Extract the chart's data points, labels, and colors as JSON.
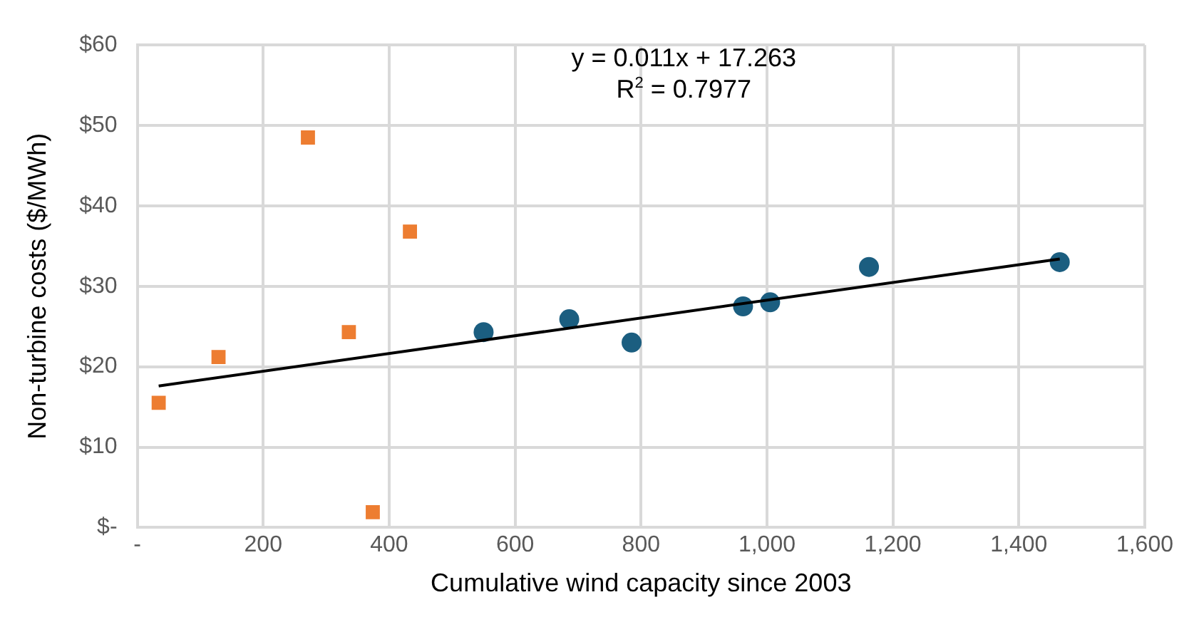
{
  "chart_data": {
    "type": "scatter",
    "xlabel": "Cumulative wind capacity since 2003",
    "ylabel": "Non-turbine costs ($/MWh)",
    "annotations": [
      "y = 0.011x + 17.263",
      "R$^{2}$ = 0.7977"
    ],
    "series": [
      {
        "marker": "square",
        "color": "#ed7d31",
        "x": [
          34,
          129,
          271,
          336,
          374,
          433
        ],
        "values": [
          15.5,
          21.2,
          48.5,
          24.3,
          1.9,
          36.8
        ]
      },
      {
        "marker": "circle",
        "color": "#1b5e80",
        "x": [
          550,
          686,
          785,
          962,
          1005,
          1162,
          1465
        ],
        "values": [
          24.3,
          25.9,
          23.0,
          27.5,
          28.0,
          32.4,
          33.0
        ]
      },
      {
        "type": "line",
        "marker": "none",
        "color": "#000000",
        "x": [
          34,
          1465
        ],
        "values": [
          17.6,
          33.4
        ]
      }
    ],
    "xlim": [
      0,
      1600
    ],
    "xticks": [
      {
        "value": 0,
        "label": "-"
      },
      {
        "value": 200,
        "label": "200"
      },
      {
        "value": 400,
        "label": "400"
      },
      {
        "value": 600,
        "label": "600"
      },
      {
        "value": 800,
        "label": "800"
      },
      {
        "value": 1000,
        "label": "1,000"
      },
      {
        "value": 1200,
        "label": "1,200"
      },
      {
        "value": 1400,
        "label": "1,400"
      },
      {
        "value": 1600,
        "label": "1,600"
      }
    ],
    "ylim": [
      0,
      60
    ],
    "yticks": [
      {
        "value": 0,
        "label": "$-"
      },
      {
        "value": 10,
        "label": "$10"
      },
      {
        "value": 20,
        "label": "$20"
      },
      {
        "value": 30,
        "label": "$30"
      },
      {
        "value": 40,
        "label": "$40"
      },
      {
        "value": 50,
        "label": "$50"
      },
      {
        "value": 60,
        "label": "$60"
      }
    ],
    "grid": true,
    "legend": false
  }
}
